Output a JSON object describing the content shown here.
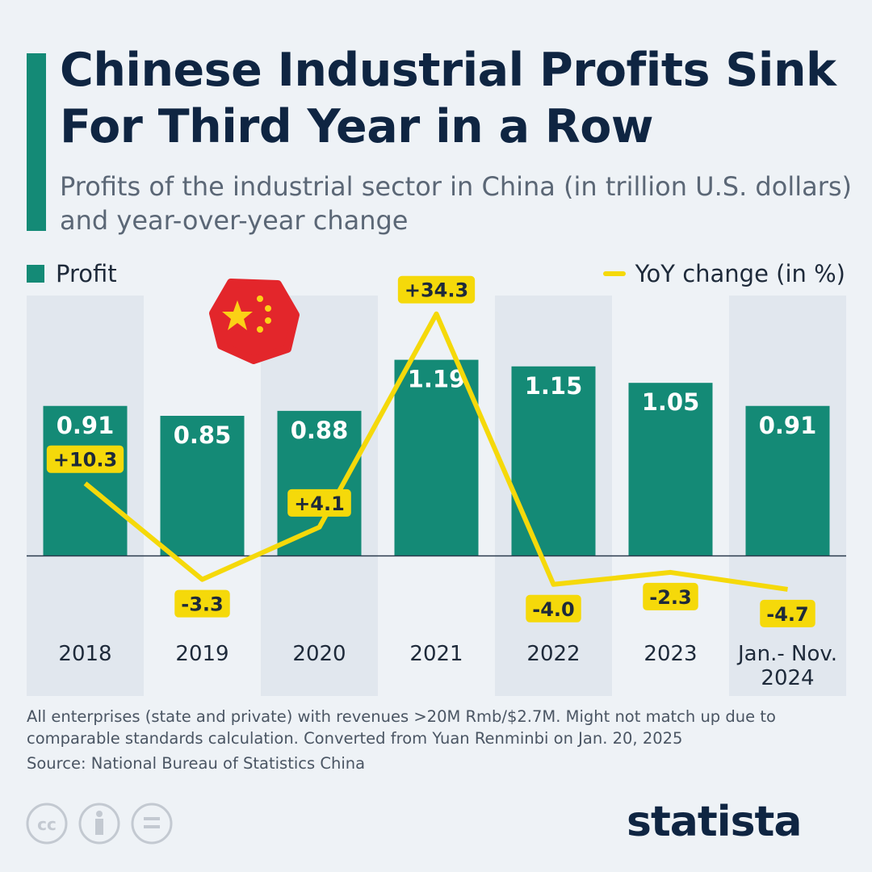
{
  "chart_data": {
    "type": "bar-line",
    "title": "Chinese Industrial Profits Sink For Third Year in a Row",
    "subtitle": "Profits of the industrial sector in China (in trillion U.S. dollars) and year-over-year change",
    "categories": [
      "2018",
      "2019",
      "2020",
      "2021",
      "2022",
      "2023",
      "Jan.- Nov. 2024"
    ],
    "series": [
      {
        "name": "Profit",
        "type": "bar",
        "color": "#148a76",
        "values": [
          0.91,
          0.85,
          0.88,
          1.19,
          1.15,
          1.05,
          0.91
        ]
      },
      {
        "name": "YoY change (in %)",
        "type": "line",
        "axis": "y2",
        "color": "#f5d90a",
        "values": [
          10.3,
          -3.3,
          4.1,
          34.3,
          -4.0,
          -2.3,
          -4.7
        ],
        "value_labels": [
          "+10.3",
          "-3.3",
          "+4.1",
          "+34.3",
          "-4.0",
          "-2.3",
          "-4.7"
        ]
      }
    ],
    "ylim": [
      -0.85,
      1.58
    ],
    "y2lim": [
      -19.8,
      36.9
    ],
    "notes": "All enterprises (state and private) with revenues >20M Rmb/$2.7M. Might not match up due to comparable standards calculation. Converted from Yuan Renminbi on Jan. 20, 2025",
    "source": "Source: National Bureau of Statistics China",
    "logo": "statista"
  }
}
